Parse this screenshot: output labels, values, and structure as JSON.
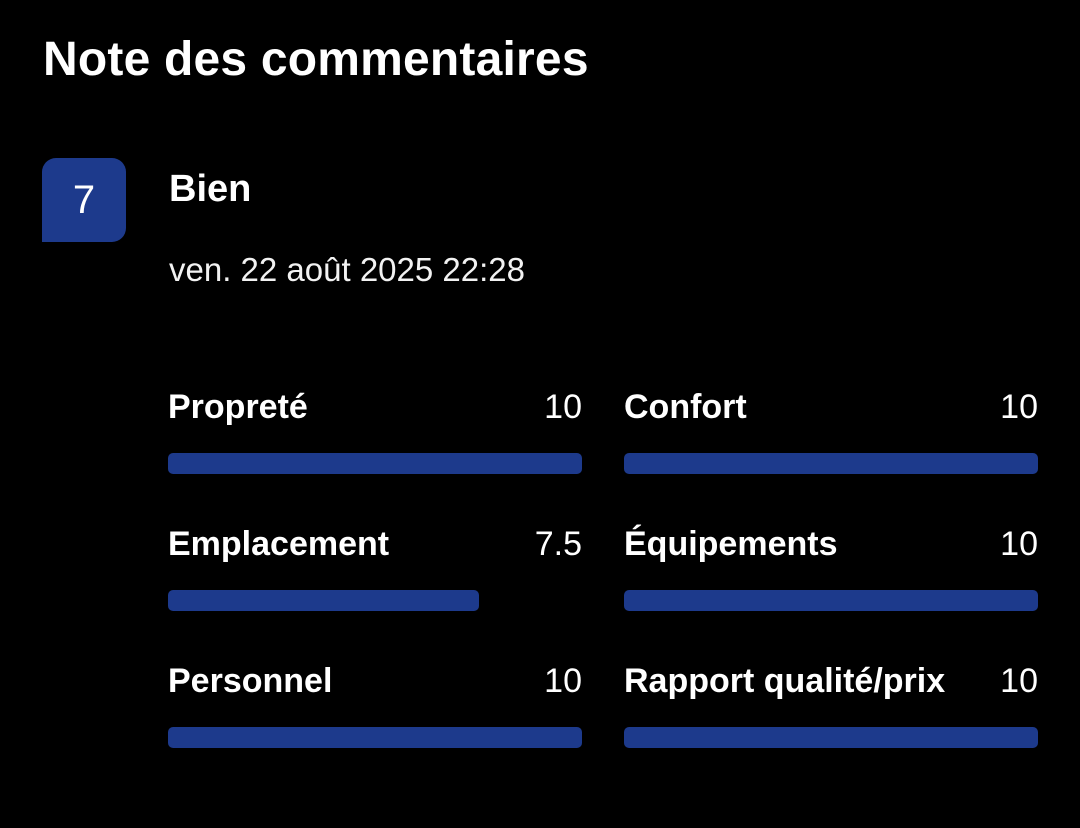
{
  "title": "Note des commentaires",
  "review": {
    "score": "7",
    "label": "Bien",
    "date": "ven. 22 août 2025 22:28"
  },
  "accent_color": "#1d3a8c",
  "categories": [
    {
      "name": "Propreté",
      "value": "10",
      "fraction": 1.0
    },
    {
      "name": "Confort",
      "value": "10",
      "fraction": 1.0
    },
    {
      "name": "Emplacement",
      "value": "7.5",
      "fraction": 0.75
    },
    {
      "name": "Équipements",
      "value": "10",
      "fraction": 1.0
    },
    {
      "name": "Personnel",
      "value": "10",
      "fraction": 1.0
    },
    {
      "name": "Rapport qualité/prix",
      "value": "10",
      "fraction": 1.0
    }
  ]
}
